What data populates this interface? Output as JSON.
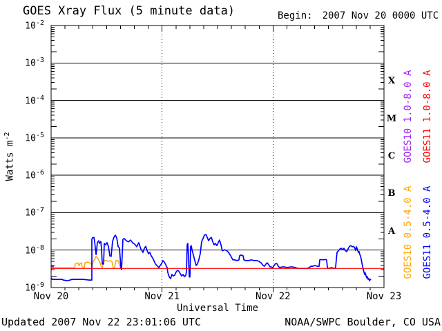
{
  "header": {
    "title": "GOES Xray Flux (5 minute data)",
    "begin_label": "Begin:",
    "begin_value": "2007 Nov 20 0000 UTC"
  },
  "footer": {
    "updated": "Updated 2007 Nov 22 23:01:06 UTC",
    "source": "NOAA/SWPC Boulder, CO USA"
  },
  "chart_data": {
    "type": "line",
    "title": "GOES Xray Flux (5 minute data)",
    "xlabel": "Universal Time",
    "ylabel_base": "Watts m",
    "ylabel_exp": "-2",
    "x_axis": {
      "start": "2007 Nov 20 0000 UTC",
      "span_days": 3,
      "tick_labels": [
        "Nov 20",
        "Nov 21",
        "Nov 22",
        "Nov 23"
      ],
      "minor_tick_hours": 3,
      "x_unit": "days since begin"
    },
    "y_axis": {
      "scale": "log",
      "tick_base": "10",
      "tick_exponents": [
        -2,
        -3,
        -4,
        -5,
        -6,
        -7,
        -8,
        -9
      ],
      "y_unit": "log10 of Watts m^-2",
      "grid_exponents": [
        -3,
        -4,
        -5,
        -6,
        -7,
        -8
      ]
    },
    "flare_classes": [
      {
        "label": "X",
        "mid_exponent": -3.5
      },
      {
        "label": "M",
        "mid_exponent": -4.5
      },
      {
        "label": "C",
        "mid_exponent": -5.5
      },
      {
        "label": "B",
        "mid_exponent": -6.5
      },
      {
        "label": "A",
        "mid_exponent": -7.5
      }
    ],
    "legend": [
      {
        "label": "GOES10 1.0-8.0 A",
        "color": "#a020f0",
        "col": 0,
        "row": 0
      },
      {
        "label": "GOES11 1.0-8.0 A",
        "color": "#ff0000",
        "col": 1,
        "row": 0
      },
      {
        "label": "GOES10 0.5-4.0 A",
        "color": "#ffa500",
        "col": 0,
        "row": 1
      },
      {
        "label": "GOES11 0.5-4.0 A",
        "color": "#0000ff",
        "col": 1,
        "row": 1
      }
    ],
    "series": [
      {
        "name": "GOES10 1.0-8.0 A",
        "color": "#a020f0",
        "width": 2.2,
        "segments": [
          [
            [
              0,
              -8.44
            ],
            [
              0.025,
              -8.44
            ]
          ]
        ]
      },
      {
        "name": "GOES10 0.5-4.0 A",
        "color": "#ffa500",
        "width": 1.5,
        "segments": [
          [
            [
              0,
              -8.47
            ],
            [
              0.199,
              -8.47
            ],
            [
              0.212,
              -8.47
            ],
            [
              0.218,
              -8.36
            ],
            [
              0.243,
              -8.34
            ],
            [
              0.249,
              -8.39
            ],
            [
              0.255,
              -8.41
            ],
            [
              0.261,
              -8.36
            ],
            [
              0.274,
              -8.34
            ],
            [
              0.28,
              -8.45
            ],
            [
              0.299,
              -8.47
            ],
            [
              0.305,
              -8.34
            ],
            [
              0.324,
              -8.32
            ],
            [
              0.349,
              -8.34
            ],
            [
              0.361,
              -8.36
            ],
            [
              0.367,
              -8.45
            ],
            [
              0.373,
              -8.39
            ],
            [
              0.38,
              -8.3
            ],
            [
              0.392,
              -8.25
            ],
            [
              0.405,
              -8.17
            ],
            [
              0.417,
              -8.21
            ],
            [
              0.429,
              -8.26
            ],
            [
              0.442,
              -8.34
            ],
            [
              0.448,
              -8.41
            ],
            [
              0.461,
              -8.47
            ],
            [
              0.473,
              -8.34
            ],
            [
              0.479,
              -8.28
            ],
            [
              0.498,
              -8.28
            ],
            [
              0.517,
              -8.3
            ],
            [
              0.535,
              -8.28
            ],
            [
              0.548,
              -8.3
            ],
            [
              0.554,
              -8.39
            ],
            [
              0.56,
              -8.47
            ],
            [
              0.573,
              -8.47
            ],
            [
              0.579,
              -8.36
            ],
            [
              0.585,
              -8.28
            ],
            [
              0.604,
              -8.28
            ],
            [
              0.61,
              -8.32
            ],
            [
              0.616,
              -8.41
            ],
            [
              0.629,
              -8.49
            ]
          ]
        ]
      },
      {
        "name": "GOES11 0.5-4.0 A",
        "color": "#0000ff",
        "width": 1.7,
        "segments": [
          [
            [
              0,
              -8.74
            ],
            [
              0.01,
              -8.78
            ],
            [
              0.1,
              -8.78
            ],
            [
              0.11,
              -8.8
            ],
            [
              0.15,
              -8.82
            ],
            [
              0.19,
              -8.78
            ],
            [
              0.24,
              -8.78
            ],
            [
              0.29,
              -8.78
            ],
            [
              0.34,
              -8.8
            ],
            [
              0.367,
              -8.8
            ],
            [
              0.367,
              -7.71
            ],
            [
              0.373,
              -7.67
            ],
            [
              0.386,
              -7.66
            ],
            [
              0.392,
              -7.77
            ],
            [
              0.405,
              -8.12
            ],
            [
              0.417,
              -7.8
            ],
            [
              0.429,
              -7.75
            ],
            [
              0.436,
              -7.82
            ],
            [
              0.448,
              -7.77
            ],
            [
              0.454,
              -7.95
            ],
            [
              0.461,
              -8.37
            ],
            [
              0.473,
              -8.37
            ],
            [
              0.479,
              -7.82
            ],
            [
              0.492,
              -7.86
            ],
            [
              0.504,
              -7.8
            ],
            [
              0.517,
              -7.91
            ],
            [
              0.529,
              -8.15
            ],
            [
              0.541,
              -8.17
            ],
            [
              0.554,
              -7.77
            ],
            [
              0.566,
              -7.66
            ],
            [
              0.579,
              -7.6
            ],
            [
              0.591,
              -7.67
            ],
            [
              0.604,
              -7.9
            ],
            [
              0.616,
              -7.95
            ],
            [
              0.629,
              -8.48
            ],
            [
              0.635,
              -8.52
            ],
            [
              0.647,
              -7.71
            ],
            [
              0.66,
              -7.69
            ],
            [
              0.678,
              -7.75
            ],
            [
              0.697,
              -7.78
            ],
            [
              0.716,
              -7.73
            ],
            [
              0.734,
              -7.8
            ],
            [
              0.753,
              -7.84
            ],
            [
              0.772,
              -7.91
            ],
            [
              0.79,
              -7.8
            ],
            [
              0.809,
              -7.97
            ],
            [
              0.828,
              -8.06
            ],
            [
              0.84,
              -7.95
            ],
            [
              0.853,
              -7.9
            ],
            [
              0.865,
              -8.01
            ],
            [
              0.878,
              -8.1
            ],
            [
              0.89,
              -8.06
            ],
            [
              0.902,
              -8.15
            ],
            [
              0.915,
              -8.21
            ],
            [
              0.927,
              -8.28
            ],
            [
              0.94,
              -8.37
            ],
            [
              0.959,
              -8.43
            ],
            [
              0.971,
              -8.47
            ],
            [
              0.983,
              -8.41
            ],
            [
              0.996,
              -8.36
            ],
            [
              1.008,
              -8.28
            ],
            [
              1.021,
              -8.32
            ],
            [
              1.033,
              -8.39
            ],
            [
              1.046,
              -8.47
            ],
            [
              1.052,
              -8.6
            ],
            [
              1.064,
              -8.71
            ],
            [
              1.077,
              -8.76
            ],
            [
              1.089,
              -8.65
            ],
            [
              1.102,
              -8.69
            ],
            [
              1.114,
              -8.67
            ],
            [
              1.127,
              -8.58
            ],
            [
              1.139,
              -8.54
            ],
            [
              1.151,
              -8.56
            ],
            [
              1.164,
              -8.63
            ],
            [
              1.176,
              -8.69
            ],
            [
              1.189,
              -8.65
            ],
            [
              1.201,
              -8.71
            ],
            [
              1.214,
              -8.67
            ],
            [
              1.22,
              -8.58
            ],
            [
              1.226,
              -7.86
            ],
            [
              1.232,
              -7.82
            ],
            [
              1.238,
              -8.15
            ],
            [
              1.245,
              -8.71
            ],
            [
              1.251,
              -8.72
            ],
            [
              1.257,
              -7.91
            ],
            [
              1.263,
              -7.88
            ],
            [
              1.27,
              -7.99
            ],
            [
              1.282,
              -8.13
            ],
            [
              1.295,
              -8.28
            ],
            [
              1.307,
              -8.41
            ],
            [
              1.319,
              -8.37
            ],
            [
              1.332,
              -8.25
            ],
            [
              1.344,
              -8.1
            ],
            [
              1.357,
              -7.77
            ],
            [
              1.369,
              -7.69
            ],
            [
              1.382,
              -7.6
            ],
            [
              1.394,
              -7.58
            ],
            [
              1.407,
              -7.66
            ],
            [
              1.419,
              -7.75
            ],
            [
              1.431,
              -7.69
            ],
            [
              1.444,
              -7.66
            ],
            [
              1.456,
              -7.77
            ],
            [
              1.469,
              -7.86
            ],
            [
              1.481,
              -7.82
            ],
            [
              1.494,
              -7.88
            ],
            [
              1.506,
              -7.8
            ],
            [
              1.518,
              -7.73
            ],
            [
              1.531,
              -7.86
            ],
            [
              1.543,
              -8.02
            ],
            [
              1.562,
              -7.99
            ],
            [
              1.581,
              -8.01
            ],
            [
              1.599,
              -8.06
            ],
            [
              1.618,
              -8.15
            ],
            [
              1.637,
              -8.26
            ],
            [
              1.655,
              -8.26
            ],
            [
              1.674,
              -8.28
            ],
            [
              1.693,
              -8.26
            ],
            [
              1.699,
              -8.15
            ],
            [
              1.712,
              -8.13
            ],
            [
              1.73,
              -8.15
            ],
            [
              1.737,
              -8.26
            ],
            [
              1.755,
              -8.28
            ],
            [
              1.78,
              -8.28
            ],
            [
              1.805,
              -8.26
            ],
            [
              1.83,
              -8.28
            ],
            [
              1.855,
              -8.28
            ],
            [
              1.873,
              -8.3
            ],
            [
              1.892,
              -8.34
            ],
            [
              1.911,
              -8.41
            ],
            [
              1.923,
              -8.43
            ],
            [
              1.936,
              -8.37
            ],
            [
              1.948,
              -8.34
            ],
            [
              1.961,
              -8.39
            ],
            [
              1.973,
              -8.45
            ],
            [
              1.985,
              -8.45
            ],
            [
              1.998,
              -8.47
            ],
            [
              2.01,
              -8.41
            ],
            [
              2.023,
              -8.36
            ],
            [
              2.035,
              -8.36
            ],
            [
              2.048,
              -8.43
            ],
            [
              2.06,
              -8.47
            ],
            [
              2.079,
              -8.45
            ],
            [
              2.104,
              -8.45
            ],
            [
              2.129,
              -8.47
            ],
            [
              2.154,
              -8.45
            ],
            [
              2.178,
              -8.45
            ],
            [
              2.203,
              -8.47
            ],
            [
              2.228,
              -8.49
            ],
            [
              2.253,
              -8.49
            ],
            [
              2.278,
              -8.49
            ],
            [
              2.303,
              -8.49
            ],
            [
              2.328,
              -8.47
            ],
            [
              2.34,
              -8.43
            ],
            [
              2.359,
              -8.43
            ],
            [
              2.377,
              -8.41
            ],
            [
              2.396,
              -8.43
            ],
            [
              2.415,
              -8.43
            ],
            [
              2.421,
              -8.26
            ],
            [
              2.434,
              -8.25
            ],
            [
              2.452,
              -8.26
            ],
            [
              2.471,
              -8.25
            ],
            [
              2.483,
              -8.26
            ],
            [
              2.49,
              -8.47
            ],
            [
              2.502,
              -8.49
            ],
            [
              2.527,
              -8.47
            ],
            [
              2.552,
              -8.49
            ],
            [
              2.564,
              -8.47
            ],
            [
              2.571,
              -8.23
            ],
            [
              2.577,
              -8.06
            ],
            [
              2.589,
              -8.02
            ],
            [
              2.602,
              -7.97
            ],
            [
              2.614,
              -7.95
            ],
            [
              2.627,
              -7.99
            ],
            [
              2.639,
              -7.95
            ],
            [
              2.651,
              -8.01
            ],
            [
              2.664,
              -8.04
            ],
            [
              2.676,
              -7.97
            ],
            [
              2.689,
              -7.9
            ],
            [
              2.701,
              -7.88
            ],
            [
              2.714,
              -7.91
            ],
            [
              2.726,
              -7.9
            ],
            [
              2.738,
              -7.95
            ],
            [
              2.745,
              -8.01
            ],
            [
              2.751,
              -7.91
            ],
            [
              2.757,
              -7.95
            ],
            [
              2.763,
              -8.01
            ],
            [
              2.77,
              -8.06
            ],
            [
              2.776,
              -8.04
            ],
            [
              2.782,
              -8.12
            ],
            [
              2.788,
              -8.15
            ],
            [
              2.794,
              -8.23
            ],
            [
              2.801,
              -8.34
            ],
            [
              2.807,
              -8.43
            ],
            [
              2.813,
              -8.52
            ],
            [
              2.819,
              -8.58
            ],
            [
              2.826,
              -8.65
            ],
            [
              2.832,
              -8.61
            ],
            [
              2.838,
              -8.69
            ],
            [
              2.844,
              -8.74
            ],
            [
              2.851,
              -8.71
            ],
            [
              2.857,
              -8.78
            ],
            [
              2.863,
              -8.76
            ],
            [
              2.869,
              -8.82
            ],
            [
              2.876,
              -8.78
            ],
            [
              2.882,
              -8.8
            ]
          ]
        ]
      },
      {
        "name": "GOES11 1.0-8.0 A",
        "color": "#ff0000",
        "width": 1.2,
        "segments": [
          [
            [
              0,
              -8.49
            ],
            [
              3.0,
              -8.49
            ]
          ]
        ]
      }
    ]
  }
}
